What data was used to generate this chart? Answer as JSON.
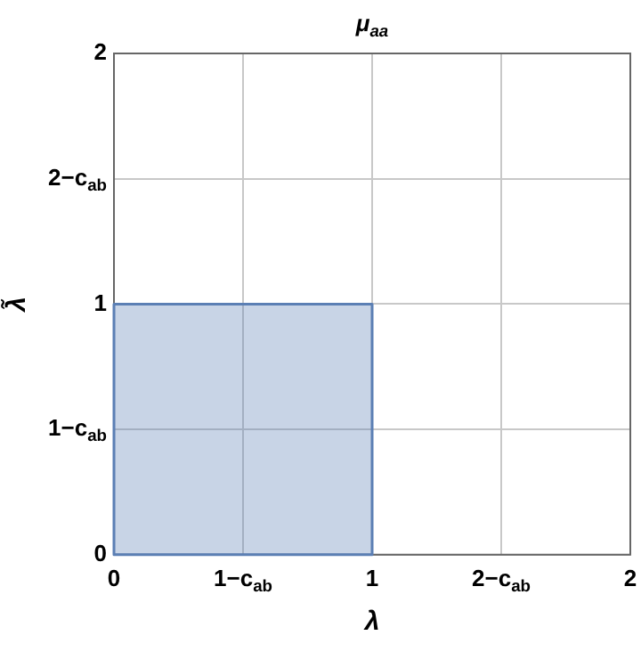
{
  "chart_data": {
    "type": "histogram",
    "title": "μ$_{aa}$",
    "xlabel": "λ",
    "ylabel": "λ̃",
    "bins": [
      0,
      1
    ],
    "values": [
      1
    ],
    "color": "#5b7fb4",
    "xlim": [
      0,
      2
    ],
    "ylim": [
      0,
      2
    ],
    "xticks": [
      0,
      {
        "value": 0.5,
        "label": "1−c$_{ab}$"
      },
      1,
      {
        "value": 1.5,
        "label": "2−c$_{ab}$"
      },
      2
    ],
    "yticks": [
      0,
      {
        "value": 0.5,
        "label": "1−c$_{ab}$"
      },
      1,
      {
        "value": 1.5,
        "label": "2−c$_{ab}$"
      },
      2
    ],
    "grid": true
  }
}
